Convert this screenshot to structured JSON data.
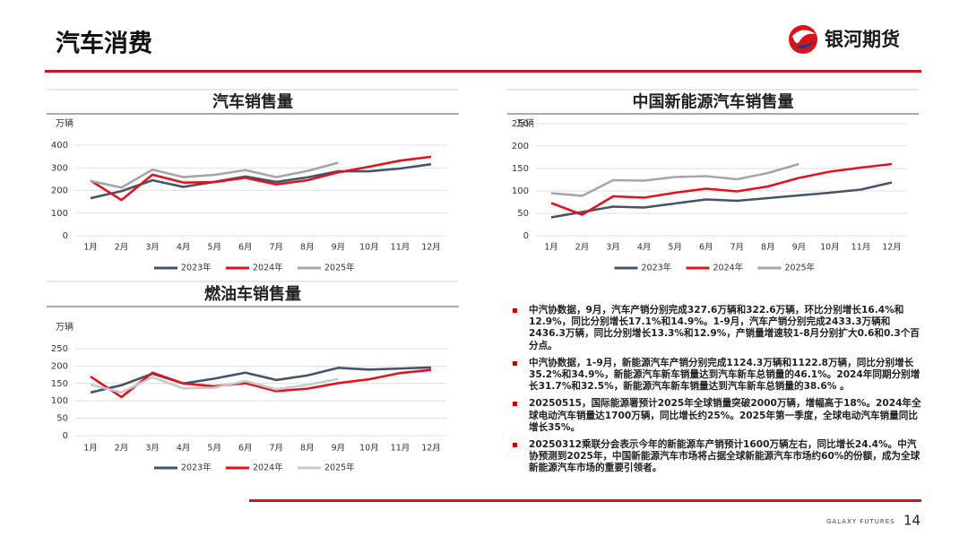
{
  "header": {
    "title": "汽车消费",
    "brand": "银河期货"
  },
  "chart_data": [
    {
      "type": "line",
      "title": "汽车销售量",
      "unit": "万辆",
      "categories": [
        "1月",
        "2月",
        "3月",
        "4月",
        "5月",
        "6月",
        "7月",
        "8月",
        "9月",
        "10月",
        "11月",
        "12月"
      ],
      "ylim": [
        0,
        400
      ],
      "yticks": [
        0,
        100,
        200,
        300,
        400
      ],
      "grid": true,
      "legend": "bottom",
      "series": [
        {
          "name": "2023年",
          "color": "#44546a",
          "values": [
            166,
            197,
            245,
            216,
            238,
            262,
            238,
            258,
            285,
            285,
            297,
            316
          ]
        },
        {
          "name": "2024年",
          "color": "#e0141e",
          "values": [
            244,
            158,
            270,
            235,
            237,
            256,
            227,
            245,
            280,
            305,
            332,
            349
          ]
        },
        {
          "name": "2025年",
          "color": "#a6a6a6",
          "values": [
            242,
            213,
            292,
            259,
            269,
            290,
            259,
            286,
            323,
            null,
            null,
            null
          ]
        }
      ]
    },
    {
      "type": "line",
      "title": "中国新能源汽车销售量",
      "unit": "万辆",
      "categories": [
        "1月",
        "2月",
        "3月",
        "4月",
        "5月",
        "6月",
        "7月",
        "8月",
        "9月",
        "10月",
        "11月",
        "12月"
      ],
      "ylim": [
        0,
        250
      ],
      "yticks": [
        0,
        50,
        100,
        150,
        200,
        250
      ],
      "grid": true,
      "legend": "bottom",
      "series": [
        {
          "name": "2023年",
          "color": "#44546a",
          "values": [
            41,
            53,
            65,
            63,
            72,
            81,
            78,
            84,
            90,
            96,
            103,
            119
          ]
        },
        {
          "name": "2024年",
          "color": "#e0141e",
          "values": [
            73,
            47,
            88,
            85,
            96,
            105,
            99,
            110,
            129,
            143,
            152,
            160
          ]
        },
        {
          "name": "2025年",
          "color": "#a6a6a6",
          "values": [
            95,
            89,
            124,
            123,
            131,
            133,
            126,
            140,
            160,
            null,
            null,
            null
          ]
        }
      ]
    },
    {
      "type": "line",
      "title": "燃油车销售量",
      "unit": "万辆",
      "categories": [
        "1月",
        "2月",
        "3月",
        "4月",
        "5月",
        "6月",
        "7月",
        "8月",
        "9月",
        "10月",
        "11月",
        "12月"
      ],
      "ylim": [
        0,
        250
      ],
      "yticks": [
        0,
        50,
        100,
        150,
        200,
        250
      ],
      "grid": true,
      "legend": "bottom",
      "series": [
        {
          "name": "2023年",
          "color": "#44546a",
          "values": [
            124,
            145,
            178,
            150,
            164,
            181,
            160,
            173,
            195,
            190,
            193,
            196
          ]
        },
        {
          "name": "2024年",
          "color": "#e0141e",
          "values": [
            170,
            111,
            181,
            150,
            142,
            151,
            128,
            135,
            151,
            162,
            180,
            189
          ]
        },
        {
          "name": "2025年",
          "color": "#c9c9c9",
          "values": [
            147,
            124,
            168,
            136,
            138,
            157,
            133,
            146,
            163,
            null,
            null,
            null
          ]
        }
      ]
    }
  ],
  "bullets": [
    "中汽协数据，9月，汽车产销分别完成327.6万辆和322.6万辆，环比分别增长16.4%和12.9%，同比分别增长17.1%和14.9%。1-9月，汽车产销分别完成2433.3万辆和2436.3万辆，同比分别增长13.3%和12.9%，产销量增速较1-8月分别扩大0.6和0.3个百分点。",
    "中汽协数据，1-9月，新能源汽车产销分别完成1124.3万辆和1122.8万辆，同比分别增长35.2%和34.9%，新能源汽车新车销量达到汽车新车总销量的46.1%。2024年同期分别增长31.7%和32.5%，新能源汽车新车销量达到汽车新车总销量的38.6% 。",
    "20250515，国际能源署预计2025年全球销量突破2000万辆，增幅高于18%。2024年全球电动汽车销量达1700万辆，同比增长约25%。2025年第一季度，全球电动汽车销量同比增长35%。",
    "20250312乘联分会表示今年的新能源车产销预计1600万辆左右，同比增长24.4%。中汽协预测到2025年，中国新能源汽车市场将占据全球新能源汽车市场约60%的份额，成为全球新能源汽车市场的重要引领者。"
  ],
  "footer": {
    "brand": "GALAXY FUTURES",
    "page": "14"
  }
}
